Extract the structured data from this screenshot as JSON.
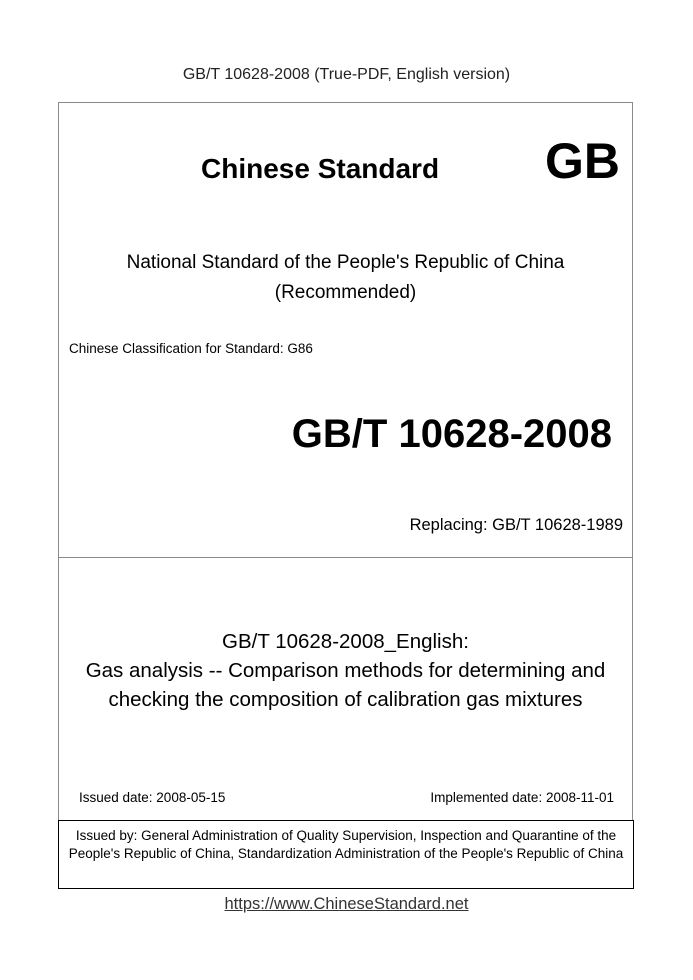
{
  "header": "GB/T 10628-2008 (True-PDF, English version)",
  "brand": "Chinese Standard",
  "gb_logo": "GB",
  "national": "National Standard of the People's Republic of China",
  "recommended": "(Recommended)",
  "classification": "Chinese Classification for Standard: G86",
  "standard_number": "GB/T 10628-2008",
  "replacing": "Replacing: GB/T 10628-1989",
  "title_lines": [
    "GB/T 10628-2008_English:",
    "Gas analysis -- Comparison methods for determining and",
    "checking the composition of calibration gas mixtures"
  ],
  "issued_date": "Issued date: 2008-05-15",
  "implemented_date": "Implemented date: 2008-11-01",
  "issued_by": "Issued by: General Administration of Quality Supervision, Inspection and Quarantine of the People's Republic of China, Standardization Administration of the People's Republic of China",
  "footer_link": "https://www.ChineseStandard.net"
}
